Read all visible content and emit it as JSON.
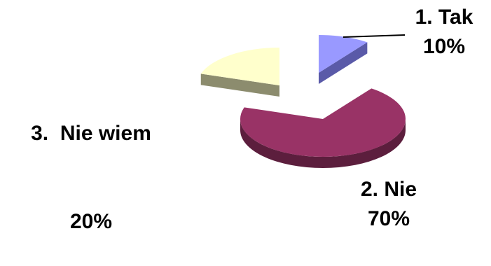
{
  "chart_data": {
    "type": "pie",
    "title": "",
    "slices": [
      {
        "name": "1. Tak",
        "value": 10,
        "value_label": "10%",
        "color": "#9999ff",
        "side_color": "#5a5aa8"
      },
      {
        "name": "2. Nie",
        "value": 70,
        "value_label": "70%",
        "color": "#993366",
        "side_color": "#5c1e3d"
      },
      {
        "name": "3.  Nie wiem",
        "value": 20,
        "value_label": "20%",
        "color": "#ffffcc",
        "side_color": "#8c8c6e"
      }
    ],
    "exploded": true,
    "three_d": true,
    "legend": "none",
    "data_labels": "outside"
  }
}
